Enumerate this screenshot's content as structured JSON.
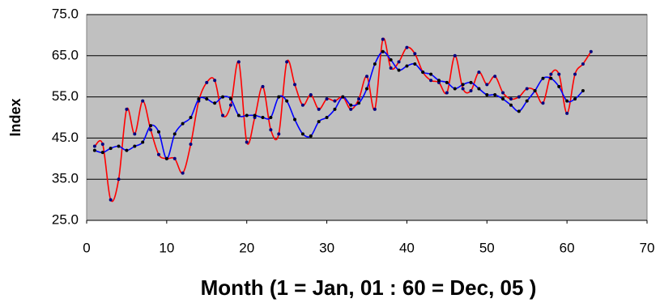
{
  "chart_data": {
    "type": "line",
    "x_label": "Month (1 = Jan, 01 : 60 = Dec, 05 )",
    "y_label": "Index",
    "xlim": [
      0,
      70
    ],
    "xticks": [
      0,
      10,
      20,
      30,
      40,
      50,
      60,
      70
    ],
    "ylim": [
      25,
      75
    ],
    "yticks": [
      {
        "value": 25,
        "label": "25.0"
      },
      {
        "value": 35,
        "label": "35.0"
      },
      {
        "value": 45,
        "label": "45.0"
      },
      {
        "value": 55,
        "label": "55.0"
      },
      {
        "value": 65,
        "label": "65.0"
      },
      {
        "value": 75,
        "label": "75.0"
      }
    ],
    "grid": true,
    "background": "#c0c0c0",
    "series": [
      {
        "color": "#ff0000",
        "marker_color": "#000080",
        "x": [
          1,
          2,
          3,
          4,
          5,
          6,
          7,
          8,
          9,
          10,
          11,
          12,
          13,
          14,
          15,
          16,
          17,
          18,
          19,
          20,
          21,
          22,
          23,
          24,
          25,
          26,
          27,
          28,
          29,
          30,
          31,
          32,
          33,
          34,
          35,
          36,
          37,
          38,
          39,
          40,
          41,
          42,
          43,
          44,
          45,
          46,
          47,
          48,
          49,
          50,
          51,
          52,
          53,
          54,
          55,
          56,
          57,
          58,
          59,
          60,
          61,
          62,
          63
        ],
        "values": [
          43,
          43.5,
          30,
          35,
          52,
          46,
          54,
          47,
          41,
          40,
          40,
          36.5,
          43.5,
          54,
          58.5,
          59,
          50.5,
          53,
          63.5,
          44,
          50,
          57.5,
          47,
          46,
          63.5,
          58,
          53,
          55.5,
          52,
          54.5,
          54,
          55,
          52,
          54.5,
          60,
          52,
          69,
          62,
          63.5,
          67,
          65.5,
          61,
          59,
          58.5,
          56,
          65,
          57,
          56.5,
          61,
          58,
          60,
          56,
          54.5,
          55,
          57,
          56.5,
          53.5,
          60.5,
          60.5,
          51,
          60.5,
          63,
          66
        ]
      },
      {
        "color": "#0000ff",
        "marker_color": "#000000",
        "x": [
          1,
          2,
          3,
          4,
          5,
          6,
          7,
          8,
          9,
          10,
          11,
          12,
          13,
          14,
          15,
          16,
          17,
          18,
          19,
          20,
          21,
          22,
          23,
          24,
          25,
          26,
          27,
          28,
          29,
          30,
          31,
          32,
          33,
          34,
          35,
          36,
          37,
          38,
          39,
          40,
          41,
          42,
          43,
          44,
          45,
          46,
          47,
          48,
          49,
          50,
          51,
          52,
          53,
          54,
          55,
          56,
          57,
          58,
          59,
          60,
          61,
          62
        ],
        "values": [
          42,
          41.5,
          42.5,
          43,
          42,
          43,
          44,
          48,
          46.5,
          40,
          46,
          48.5,
          50,
          54.5,
          54.5,
          53.5,
          55,
          54.5,
          50.5,
          50.5,
          50.5,
          50,
          50,
          55,
          54,
          49.5,
          46,
          45.5,
          49,
          50,
          52,
          55,
          53,
          53.5,
          57,
          63,
          66,
          64,
          61.5,
          62.5,
          63,
          61,
          60.5,
          59,
          58.5,
          57,
          58,
          58.5,
          57,
          55.5,
          55.5,
          54.5,
          53,
          51.5,
          54,
          56.5,
          59.5,
          59.5,
          57.5,
          54,
          54.5,
          56.5
        ]
      }
    ]
  }
}
